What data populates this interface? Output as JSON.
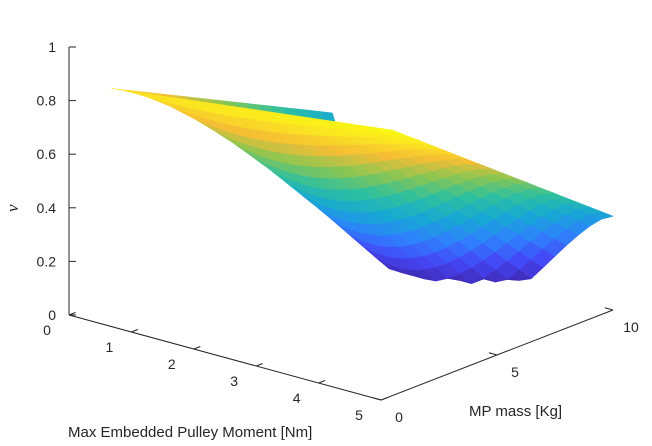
{
  "chart_data": {
    "type": "surface",
    "xlabel": "Max Embedded Pulley Moment [Nm]",
    "ylabel": "MP mass [Kg]",
    "zlabel": "ν",
    "x_ticks": [
      0,
      1,
      2,
      3,
      4,
      5
    ],
    "y_ticks": [
      0,
      5,
      10
    ],
    "z_ticks": [
      0,
      0.2,
      0.4,
      0.6,
      0.8,
      1
    ],
    "x_tick_labels": [
      "0",
      "1",
      "2",
      "3",
      "4",
      "5"
    ],
    "y_tick_labels": [
      "0",
      "5",
      "10"
    ],
    "z_tick_labels": [
      "0",
      "0.2",
      "0.4",
      "0.6",
      "0.8",
      "1"
    ],
    "xlim": [
      0,
      5
    ],
    "ylim": [
      0,
      10
    ],
    "zlim": [
      0,
      1
    ],
    "grid": false,
    "colormap": "parula",
    "colormap_stops": [
      "#3e26a8",
      "#4545f5",
      "#2f80fe",
      "#17a8d4",
      "#2ec09e",
      "#8bc652",
      "#f5bd35",
      "#fbe81f",
      "#f9fb0e"
    ],
    "surface_grid": {
      "x_range": [
        0.5,
        5
      ],
      "y_range": [
        0.5,
        10
      ],
      "nx": 24,
      "ny": 18
    },
    "samples": [
      {
        "x": 0.5,
        "y": 0.5,
        "z": 0.87
      },
      {
        "x": 0.5,
        "y": 10,
        "z": 0.45
      },
      {
        "x": 5,
        "y": 0.5,
        "z": 0.99
      },
      {
        "x": 5,
        "y": 10,
        "z": 0.35
      },
      {
        "x": 2,
        "y": 10,
        "z": 0.05
      },
      {
        "x": 5,
        "y": 5,
        "z": 0.72
      }
    ]
  }
}
